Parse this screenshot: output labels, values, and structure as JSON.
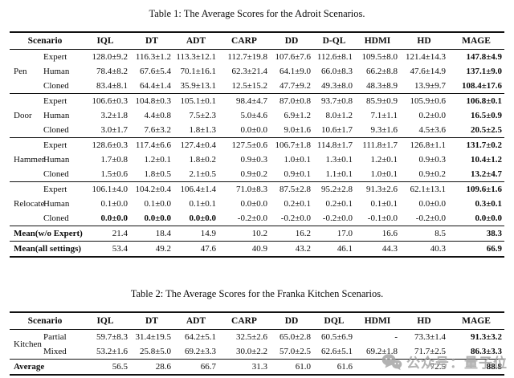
{
  "tables": [
    {
      "title": "Table 1: The Average Scores for the Adroit Scenarios.",
      "header": [
        "Scenario",
        "IQL",
        "DT",
        "ADT",
        "CARP",
        "DD",
        "D-QL",
        "HDMI",
        "HD",
        "MAGE"
      ],
      "groups": [
        {
          "name": "Pen",
          "rows": [
            {
              "setting": "Expert",
              "values": [
                "128.0±9.2",
                "116.3±1.2",
                "113.3±12.1",
                "112.7±19.8",
                "107.6±7.6",
                "112.6±8.1",
                "109.5±8.0",
                "121.4±14.3",
                "147.8±4.9"
              ],
              "bold": [
                8
              ]
            },
            {
              "setting": "Human",
              "values": [
                "78.4±8.2",
                "67.6±5.4",
                "70.1±16.1",
                "62.3±21.4",
                "64.1±9.0",
                "66.0±8.3",
                "66.2±8.8",
                "47.6±14.9",
                "137.1±9.0"
              ],
              "bold": [
                8
              ]
            },
            {
              "setting": "Cloned",
              "values": [
                "83.4±8.1",
                "64.4±1.4",
                "35.9±13.1",
                "12.5±15.2",
                "47.7±9.2",
                "49.3±8.0",
                "48.3±8.9",
                "13.9±9.7",
                "108.4±17.6"
              ],
              "bold": [
                8
              ]
            }
          ]
        },
        {
          "name": "Door",
          "rows": [
            {
              "setting": "Expert",
              "values": [
                "106.6±0.3",
                "104.8±0.3",
                "105.1±0.1",
                "98.4±4.7",
                "87.0±0.8",
                "93.7±0.8",
                "85.9±0.9",
                "105.9±0.6",
                "106.8±0.1"
              ],
              "bold": [
                8
              ]
            },
            {
              "setting": "Human",
              "values": [
                "3.2±1.8",
                "4.4±0.8",
                "7.5±2.3",
                "5.0±4.6",
                "6.9±1.2",
                "8.0±1.2",
                "7.1±1.1",
                "0.2±0.0",
                "16.5±0.9"
              ],
              "bold": [
                8
              ]
            },
            {
              "setting": "Cloned",
              "values": [
                "3.0±1.7",
                "7.6±3.2",
                "1.8±1.3",
                "0.0±0.0",
                "9.0±1.6",
                "10.6±1.7",
                "9.3±1.6",
                "4.5±3.6",
                "20.5±2.5"
              ],
              "bold": [
                8
              ]
            }
          ]
        },
        {
          "name": "Hammer",
          "rows": [
            {
              "setting": "Expert",
              "values": [
                "128.6±0.3",
                "117.4±6.6",
                "127.4±0.4",
                "127.5±0.6",
                "106.7±1.8",
                "114.8±1.7",
                "111.8±1.7",
                "126.8±1.1",
                "131.7±0.2"
              ],
              "bold": [
                8
              ]
            },
            {
              "setting": "Human",
              "values": [
                "1.7±0.8",
                "1.2±0.1",
                "1.8±0.2",
                "0.9±0.3",
                "1.0±0.1",
                "1.3±0.1",
                "1.2±0.1",
                "0.9±0.3",
                "10.4±1.2"
              ],
              "bold": [
                8
              ]
            },
            {
              "setting": "Cloned",
              "values": [
                "1.5±0.6",
                "1.8±0.5",
                "2.1±0.5",
                "0.9±0.2",
                "0.9±0.1",
                "1.1±0.1",
                "1.0±0.1",
                "0.9±0.2",
                "13.2±4.7"
              ],
              "bold": [
                8
              ]
            }
          ]
        },
        {
          "name": "Relocate",
          "rows": [
            {
              "setting": "Expert",
              "values": [
                "106.1±4.0",
                "104.2±0.4",
                "106.4±1.4",
                "71.0±8.3",
                "87.5±2.8",
                "95.2±2.8",
                "91.3±2.6",
                "62.1±13.1",
                "109.6±1.6"
              ],
              "bold": [
                8
              ]
            },
            {
              "setting": "Human",
              "values": [
                "0.1±0.0",
                "0.1±0.0",
                "0.1±0.1",
                "0.0±0.0",
                "0.2±0.1",
                "0.2±0.1",
                "0.1±0.1",
                "0.0±0.0",
                "0.3±0.1"
              ],
              "bold": [
                8
              ]
            },
            {
              "setting": "Cloned",
              "values": [
                "0.0±0.0",
                "0.0±0.0",
                "0.0±0.0",
                "-0.2±0.0",
                "-0.2±0.0",
                "-0.2±0.0",
                "-0.1±0.0",
                "-0.2±0.0",
                "0.0±0.0"
              ],
              "bold": [
                0,
                1,
                2,
                8
              ]
            }
          ]
        }
      ],
      "summary_rows": [
        {
          "label": "Mean(w/o Expert)",
          "values": [
            "21.4",
            "18.4",
            "14.9",
            "10.2",
            "16.2",
            "17.0",
            "16.6",
            "8.5",
            "38.3"
          ],
          "bold": [
            8
          ]
        },
        {
          "label": "Mean(all settings)",
          "values": [
            "53.4",
            "49.2",
            "47.6",
            "40.9",
            "43.2",
            "46.1",
            "44.3",
            "40.3",
            "66.9"
          ],
          "bold": [
            8
          ]
        }
      ]
    },
    {
      "title": "Table 2: The Average Scores for the Franka Kitchen Scenarios.",
      "header": [
        "Scenario",
        "IQL",
        "DT",
        "ADT",
        "CARP",
        "DD",
        "DQL",
        "HDMI",
        "HD",
        "MAGE"
      ],
      "groups": [
        {
          "name": "Kitchen",
          "rows": [
            {
              "setting": "Partial",
              "values": [
                "59.7±8.3",
                "31.4±19.5",
                "64.2±5.1",
                "32.5±2.6",
                "65.0±2.8",
                "60.5±6.9",
                "-",
                "73.3±1.4",
                "91.3±3.2"
              ],
              "bold": [
                8
              ]
            },
            {
              "setting": "Mixed",
              "values": [
                "53.2±1.6",
                "25.8±5.0",
                "69.2±3.3",
                "30.0±2.2",
                "57.0±2.5",
                "62.6±5.1",
                "69.2±1.8",
                "71.7±2.5",
                "86.3±3.3"
              ],
              "bold": [
                8
              ]
            }
          ]
        }
      ],
      "summary_rows": [
        {
          "label": "Average",
          "values": [
            "56.5",
            "28.6",
            "66.7",
            "31.3",
            "61.0",
            "61.6",
            "",
            "72.5",
            "88.8"
          ],
          "bold": [
            8
          ]
        }
      ]
    }
  ],
  "watermark": {
    "icon": "wechat-icon",
    "text": "公众号：量子位"
  }
}
